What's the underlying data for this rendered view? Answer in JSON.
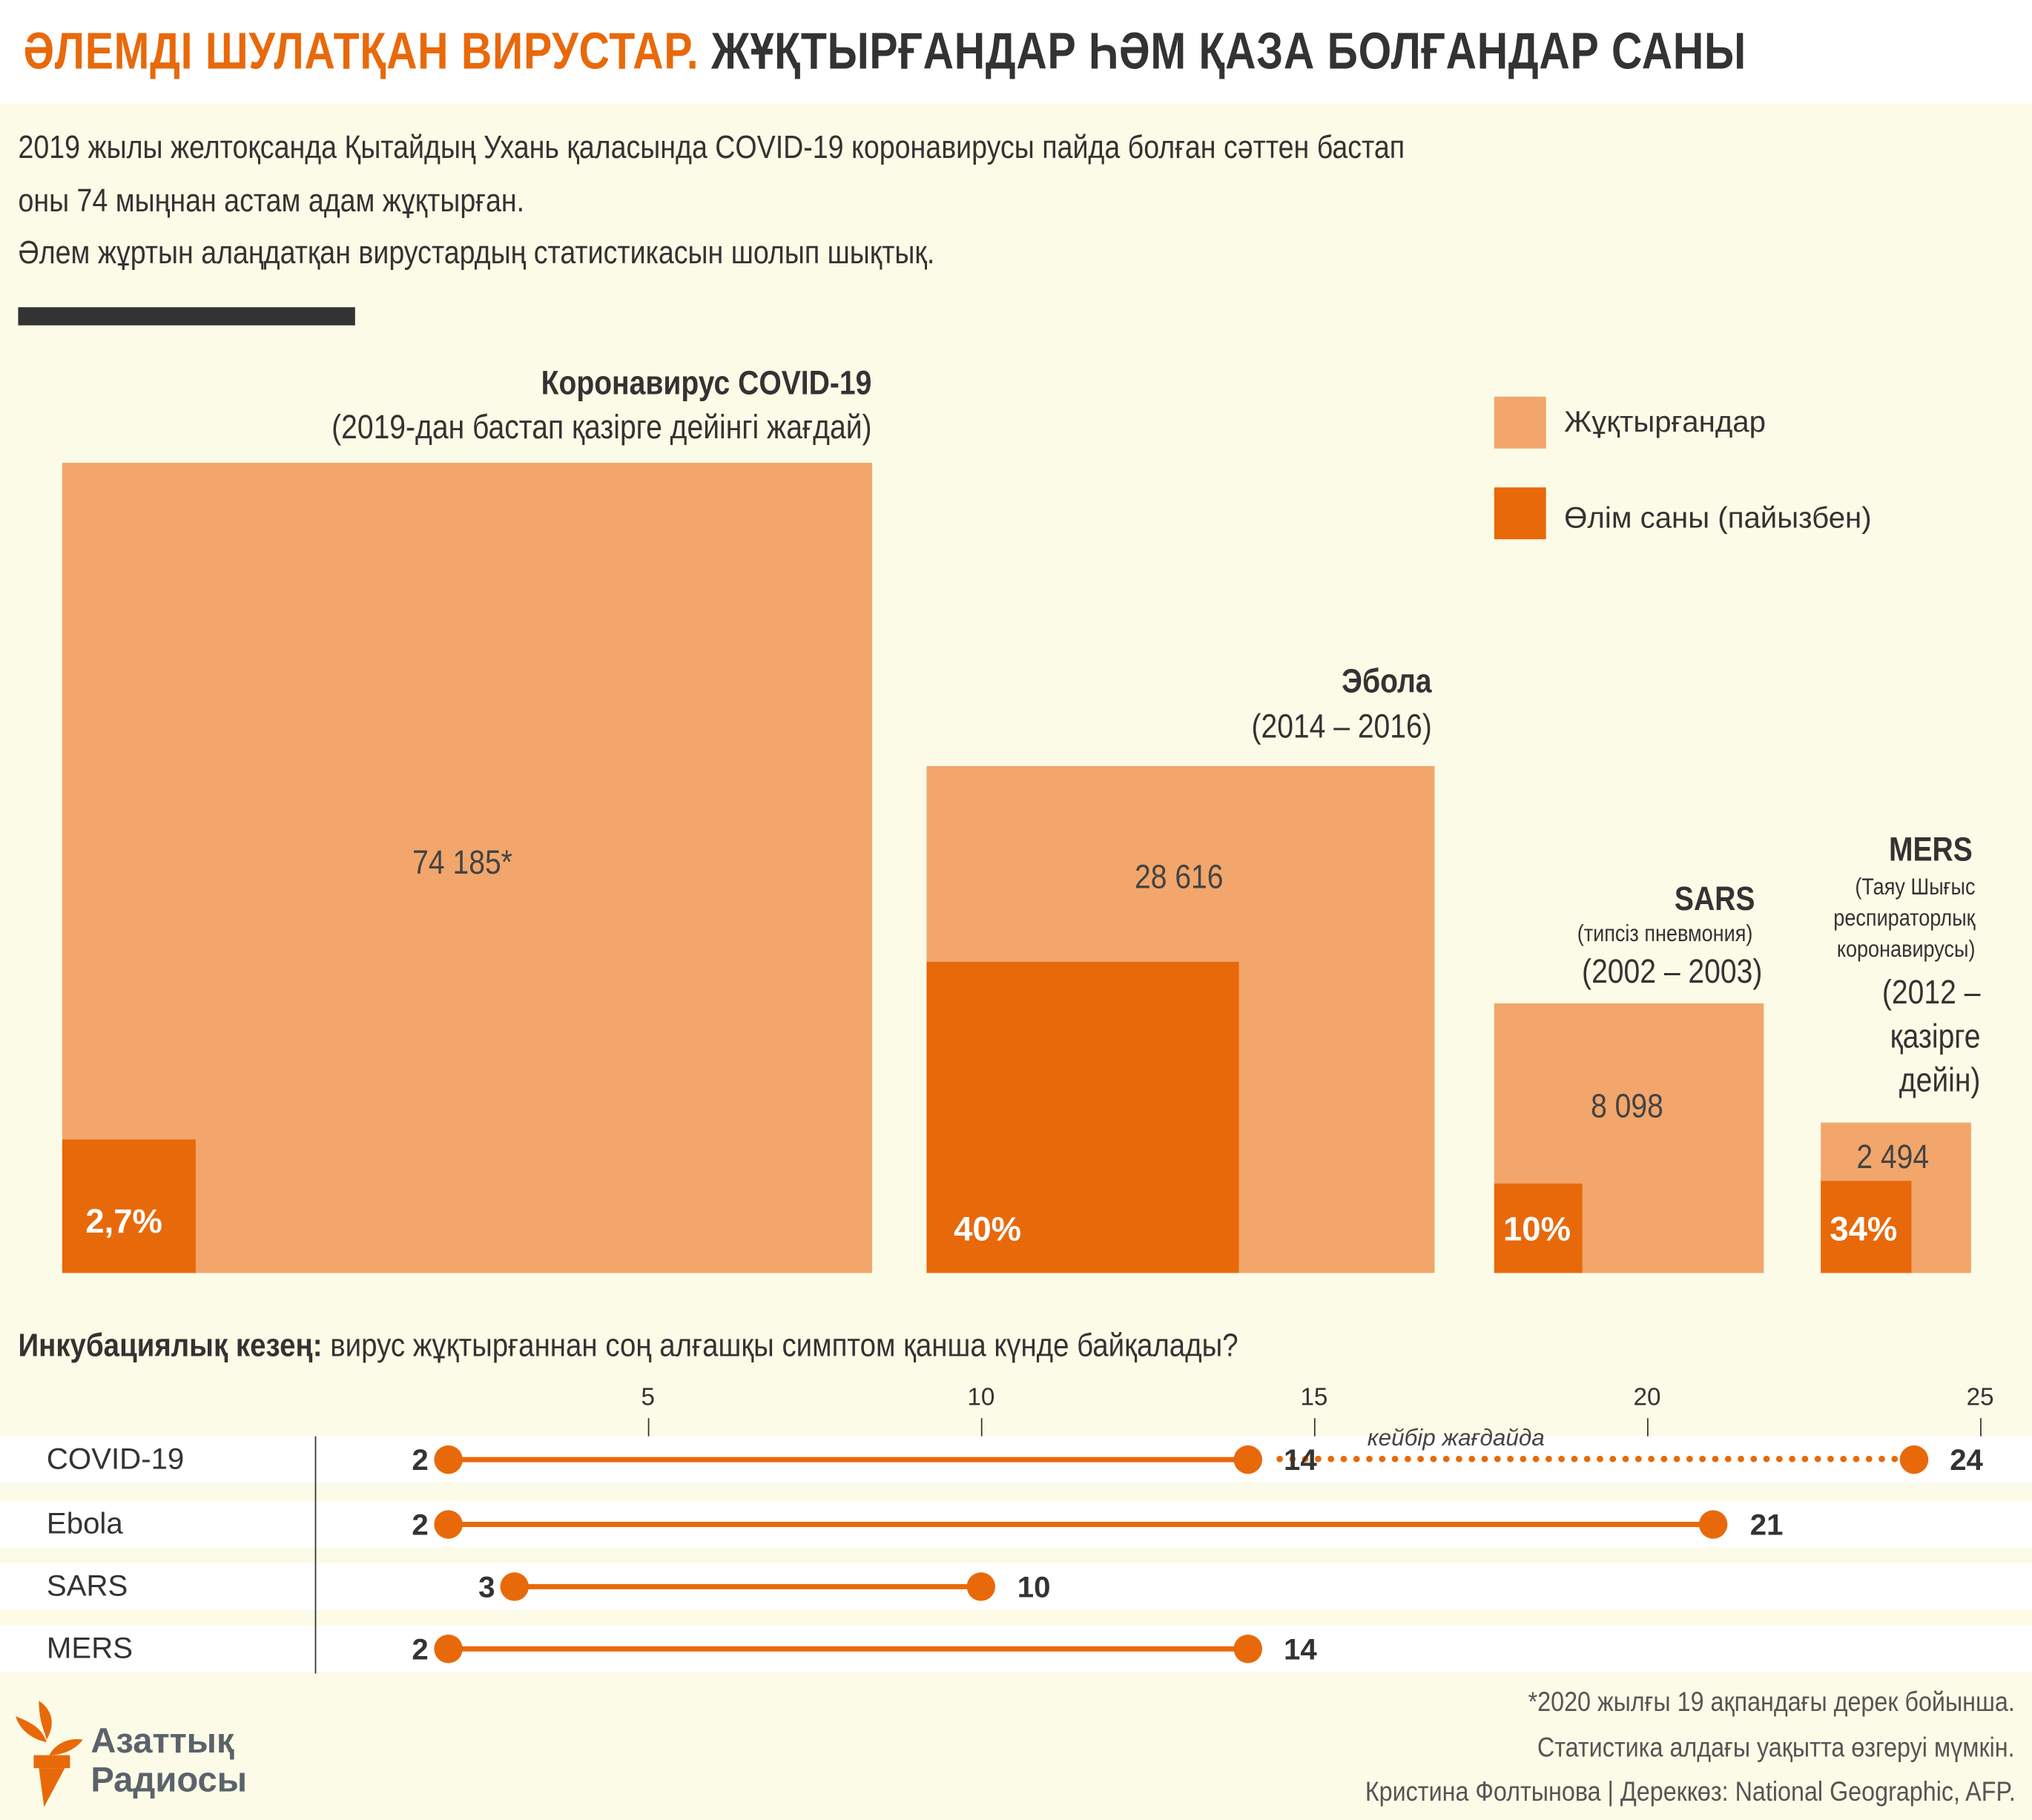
{
  "header": {
    "title_accent": "ӘЛЕМДІ ШУЛАТҚАН ВИРУСТАР.",
    "title_rest": " ЖҰҚТЫРҒАНДАР ҺӘМ ҚАЗА БОЛҒАНДАР САНЫ"
  },
  "intro": [
    "2019 жылы желтоқсанда Қытайдың Ухань қаласында COVID-19 коронавирусы пайда болған сәттен бастап",
    "оны 74 мыңнан астам адам жұқтырған.",
    "Әлем жұртын алаңдатқан вирустардың статистикасын шолып шықтық."
  ],
  "colors": {
    "infected": "#f2a66b",
    "deaths": "#e8690a",
    "accent": "#e8690a"
  },
  "chart_data": [
    {
      "type": "bar",
      "subtype": "nested-area-squares",
      "legend": [
        "Жұқтырғандар",
        "Өлім саны (пайызбен)"
      ],
      "legend_position": "top-right",
      "items": [
        {
          "name": "Коронавирус COVID-19",
          "period": "(2019-дан бастап қазірге дейінгі жағдай)",
          "infected": 74185,
          "infected_label": "74 185*",
          "death_rate": 2.7,
          "death_label": "2,7%"
        },
        {
          "name": "Эбола",
          "period": "(2014 – 2016)",
          "infected": 28616,
          "infected_label": "28 616",
          "death_rate": 40,
          "death_label": "40%"
        },
        {
          "name": "SARS",
          "subtitle": "(типсіз пневмония)",
          "period": "(2002 – 2003)",
          "infected": 8098,
          "infected_label": "8 098",
          "death_rate": 10,
          "death_label": "10%"
        },
        {
          "name": "MERS",
          "subtitle": [
            "(Таяу Шығыс",
            "респираторлық",
            "коронавирусы)"
          ],
          "period": [
            "(2012 –",
            "қазірге",
            "дейін)"
          ],
          "infected": 2494,
          "infected_label": "2 494",
          "death_rate": 34,
          "death_label": "34%"
        }
      ]
    },
    {
      "type": "range",
      "title_bold": "Инкубациялық кезең:",
      "title": " вирус жұқтырғаннан соң алғашқы симптом қанша күнде байқалады?",
      "xlim": [
        0,
        25
      ],
      "xticks": [
        5,
        10,
        15,
        20,
        25
      ],
      "series": [
        {
          "name": "COVID-19",
          "min": 2,
          "max": 14,
          "extended_max": 24,
          "extended_label": "кейбір жағдайда"
        },
        {
          "name": "Ebola",
          "min": 2,
          "max": 21
        },
        {
          "name": "SARS",
          "min": 3,
          "max": 10
        },
        {
          "name": "MERS",
          "min": 2,
          "max": 14
        }
      ]
    }
  ],
  "footer": {
    "notes": [
      "*2020 жылғы 19 ақпандағы дерек бойынша.",
      "Статистика алдағы уақытта өзгеруі мүмкін.",
      "Кристина Фолтынова | Дереккөз: National Geographic, AFP."
    ],
    "logo_text": [
      "Азаттық",
      "Радиосы"
    ]
  }
}
